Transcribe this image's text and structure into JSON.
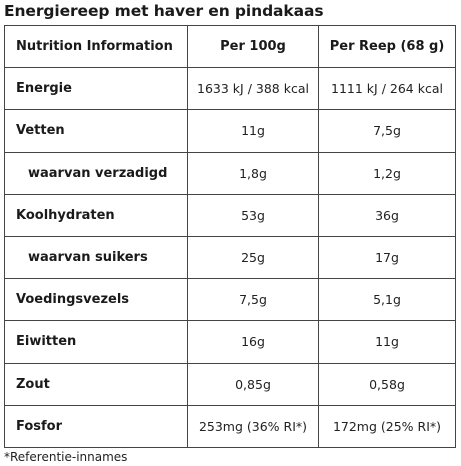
{
  "title": "Energiereep met haver en pindakaas",
  "table": {
    "headers": [
      "Nutrition Information",
      "Per 100g",
      "Per Reep (68 g)"
    ],
    "rows": [
      {
        "label": "Energie",
        "per100": "1633 kJ / 388 kcal",
        "perBar": "1111 kJ / 264 kcal"
      },
      {
        "label": "Vetten",
        "per100": "11g",
        "perBar": "7,5g"
      },
      {
        "label": "waarvan verzadigd",
        "per100": "1,8g",
        "perBar": "1,2g"
      },
      {
        "label": "Koolhydraten",
        "per100": "53g",
        "perBar": "36g"
      },
      {
        "label": "waarvan suikers",
        "per100": "25g",
        "perBar": "17g"
      },
      {
        "label": "Voedingsvezels",
        "per100": "7,5g",
        "perBar": "5,1g"
      },
      {
        "label": "Eiwitten",
        "per100": "16g",
        "perBar": "11g"
      },
      {
        "label": "Zout",
        "per100": "0,85g",
        "perBar": "0,58g"
      },
      {
        "label": "Fosfor",
        "per100": "253mg (36% RI*)",
        "perBar": "172mg (25% RI*)"
      }
    ]
  },
  "footnote": "*Referentie-innames"
}
